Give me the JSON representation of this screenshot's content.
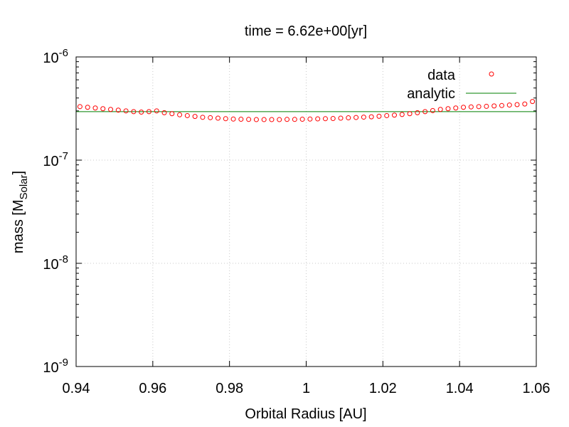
{
  "chart_data": {
    "type": "scatter",
    "title": "time = 6.62e+00[yr]",
    "xlabel": "Orbital Radius [AU]",
    "ylabel": {
      "main": "mass [M",
      "sub": "Solar",
      "close": "]"
    },
    "xlim": [
      0.94,
      1.06
    ],
    "ylim": [
      1e-09,
      1e-06
    ],
    "yscale": "log",
    "grid": true,
    "legend_position": "top-right",
    "x_ticks": [
      "0.94",
      "0.96",
      "0.98",
      "1",
      "1.02",
      "1.04",
      "1.06"
    ],
    "y_ticks": [
      {
        "base": "10",
        "exp": "-9"
      },
      {
        "base": "10",
        "exp": "-8"
      },
      {
        "base": "10",
        "exp": "-7"
      },
      {
        "base": "10",
        "exp": "-6"
      }
    ],
    "series": [
      {
        "name": "data",
        "kind": "scatter",
        "marker": "open-circle",
        "color": "#ff0000",
        "points": [
          [
            0.941,
            3.3e-07
          ],
          [
            0.943,
            3.25e-07
          ],
          [
            0.945,
            3.2e-07
          ],
          [
            0.947,
            3.15e-07
          ],
          [
            0.949,
            3.1e-07
          ],
          [
            0.951,
            3.05e-07
          ],
          [
            0.953,
            3e-07
          ],
          [
            0.955,
            2.95e-07
          ],
          [
            0.957,
            2.92e-07
          ],
          [
            0.959,
            2.95e-07
          ],
          [
            0.961,
            3e-07
          ],
          [
            0.963,
            2.88e-07
          ],
          [
            0.965,
            2.82e-07
          ],
          [
            0.967,
            2.75e-07
          ],
          [
            0.969,
            2.7e-07
          ],
          [
            0.971,
            2.65e-07
          ],
          [
            0.973,
            2.6e-07
          ],
          [
            0.975,
            2.58e-07
          ],
          [
            0.977,
            2.55e-07
          ],
          [
            0.979,
            2.52e-07
          ],
          [
            0.981,
            2.5e-07
          ],
          [
            0.983,
            2.49e-07
          ],
          [
            0.985,
            2.48e-07
          ],
          [
            0.987,
            2.47e-07
          ],
          [
            0.989,
            2.47e-07
          ],
          [
            0.991,
            2.47e-07
          ],
          [
            0.993,
            2.47e-07
          ],
          [
            0.995,
            2.48e-07
          ],
          [
            0.997,
            2.48e-07
          ],
          [
            0.999,
            2.49e-07
          ],
          [
            1.001,
            2.5e-07
          ],
          [
            1.003,
            2.51e-07
          ],
          [
            1.005,
            2.52e-07
          ],
          [
            1.007,
            2.53e-07
          ],
          [
            1.009,
            2.55e-07
          ],
          [
            1.011,
            2.57e-07
          ],
          [
            1.013,
            2.59e-07
          ],
          [
            1.015,
            2.61e-07
          ],
          [
            1.017,
            2.63e-07
          ],
          [
            1.019,
            2.66e-07
          ],
          [
            1.021,
            2.7e-07
          ],
          [
            1.023,
            2.73e-07
          ],
          [
            1.025,
            2.77e-07
          ],
          [
            1.027,
            2.82e-07
          ],
          [
            1.029,
            2.88e-07
          ],
          [
            1.031,
            2.95e-07
          ],
          [
            1.033,
            3.02e-07
          ],
          [
            1.035,
            3.1e-07
          ],
          [
            1.037,
            3.15e-07
          ],
          [
            1.039,
            3.2e-07
          ],
          [
            1.041,
            3.25e-07
          ],
          [
            1.043,
            3.28e-07
          ],
          [
            1.045,
            3.3e-07
          ],
          [
            1.047,
            3.32e-07
          ],
          [
            1.049,
            3.35e-07
          ],
          [
            1.051,
            3.38e-07
          ],
          [
            1.053,
            3.42e-07
          ],
          [
            1.055,
            3.45e-07
          ],
          [
            1.057,
            3.5e-07
          ],
          [
            1.059,
            3.7e-07
          ]
        ]
      },
      {
        "name": "analytic",
        "kind": "line",
        "color": "#007f00",
        "points": [
          [
            0.94,
            2.95e-07
          ],
          [
            1.06,
            2.95e-07
          ]
        ]
      }
    ]
  }
}
